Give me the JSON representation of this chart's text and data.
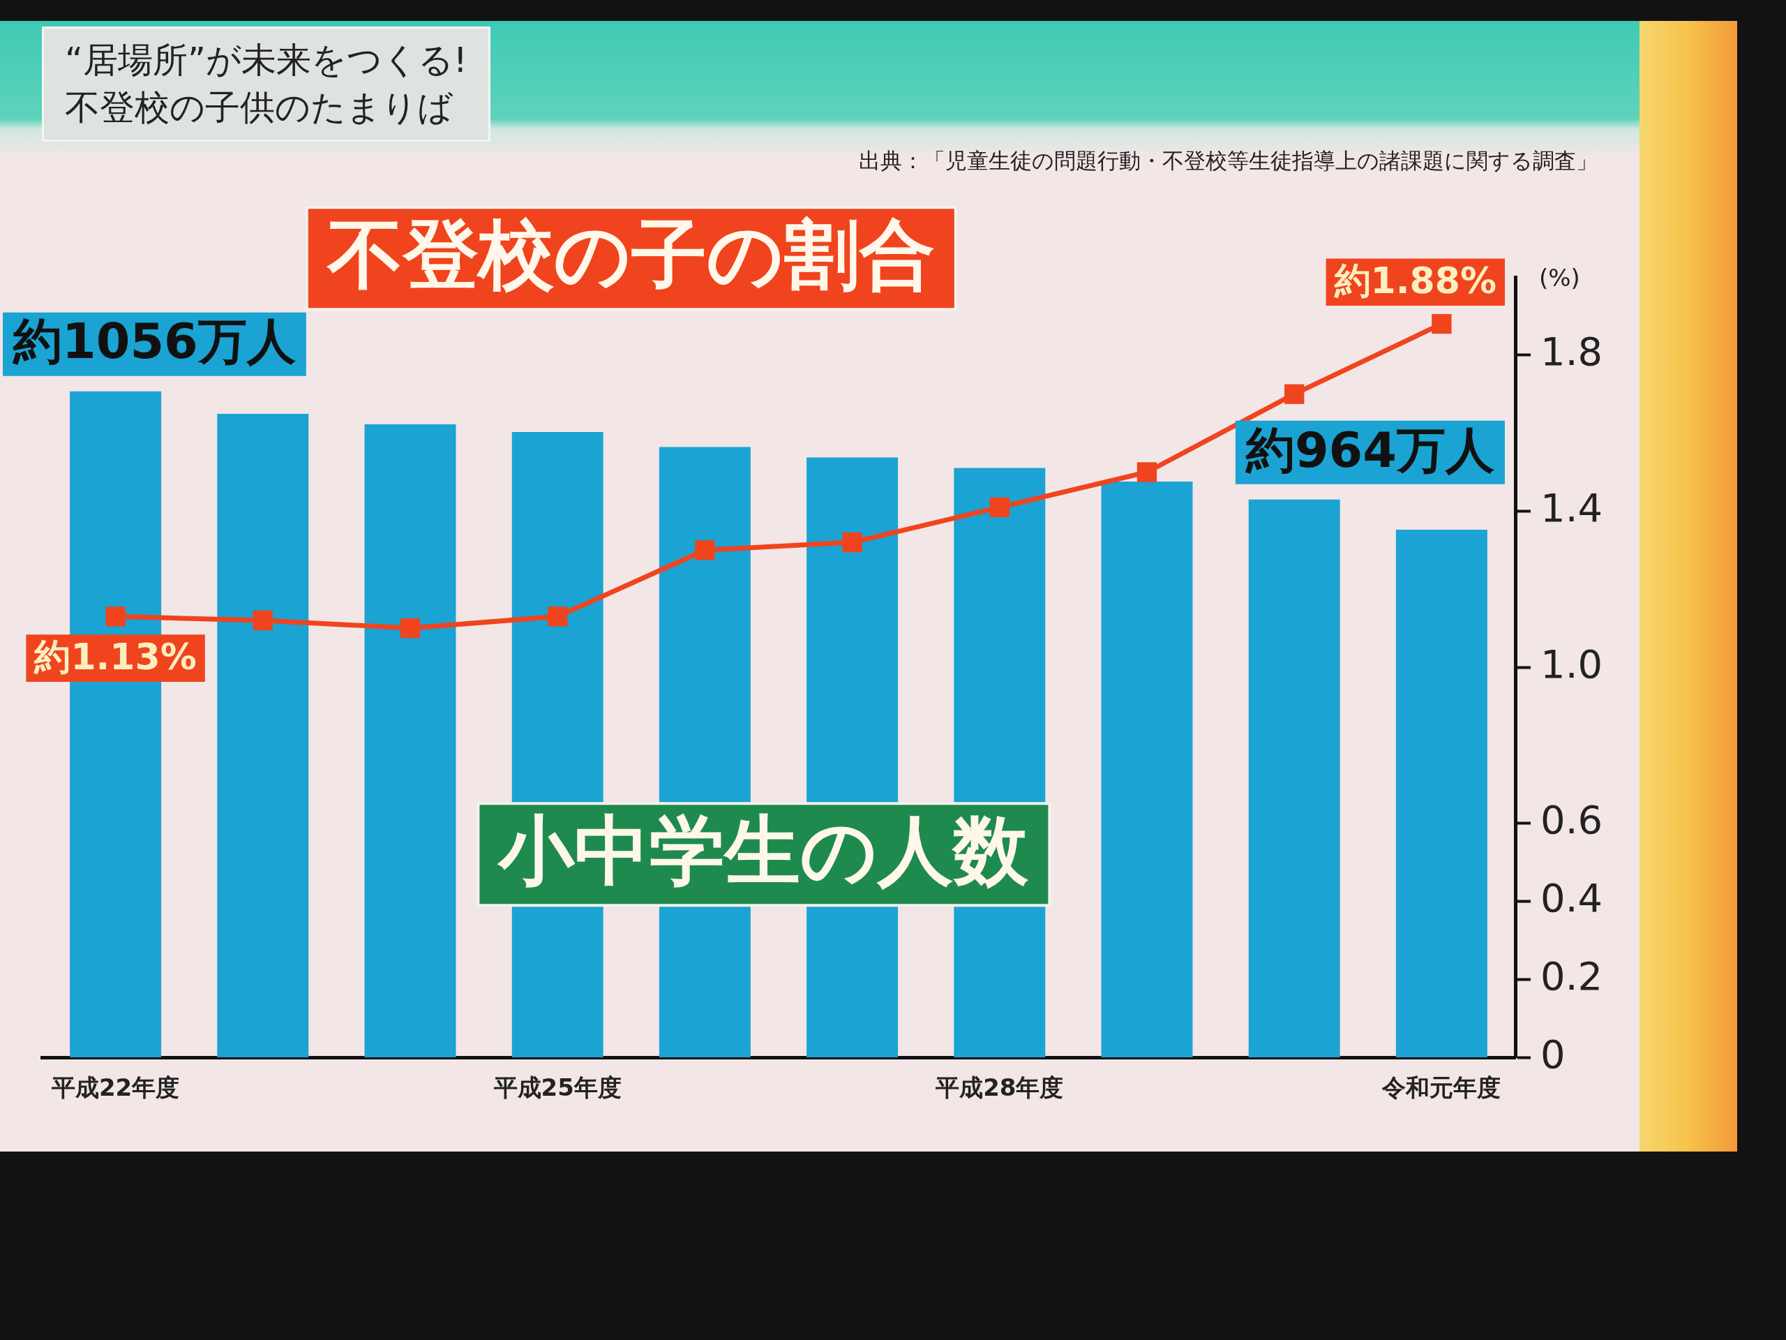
{
  "chart_data": {
    "type": "bar",
    "title": "“居場所”が未来をつくる!\n不登校の子供のたまりば",
    "annotations": [
      "出典：「児童生徒の問題行動・不登校等生徒指導上の諸課題に関する調査」"
    ],
    "categories": [
      "平成22年度",
      null,
      null,
      "平成25年度",
      null,
      null,
      "平成28年度",
      null,
      null,
      "令和元年度"
    ],
    "series": [
      {
        "name": "小中学生の人数",
        "color": "#1ba3d3",
        "values": [
          1056,
          1041,
          1034,
          1029,
          1019,
          1012,
          1005,
          996,
          984,
          964
        ],
        "value_labels": [
          "約1056万人",
          null,
          null,
          null,
          null,
          null,
          null,
          null,
          null,
          "約964万人"
        ]
      },
      {
        "name": "不登校の子の割合",
        "type": "line",
        "axis": "y2",
        "color": "#f0441e",
        "marker": "square",
        "line_style": "solid",
        "values": [
          1.13,
          1.12,
          1.1,
          1.13,
          1.3,
          1.32,
          1.41,
          1.5,
          1.7,
          1.88
        ],
        "value_labels": [
          "約1.13%",
          null,
          null,
          null,
          null,
          null,
          null,
          null,
          null,
          "約1.88%"
        ]
      }
    ],
    "ylim": [
      613,
      1132
    ],
    "y2lim": [
      0,
      2
    ],
    "y2ticks": [
      0,
      0.2,
      0.4,
      0.6,
      {
        "value": 1,
        "label": "1.0"
      },
      1.4,
      1.8
    ],
    "y2label": "(%)",
    "grid": false,
    "legend": false
  }
}
